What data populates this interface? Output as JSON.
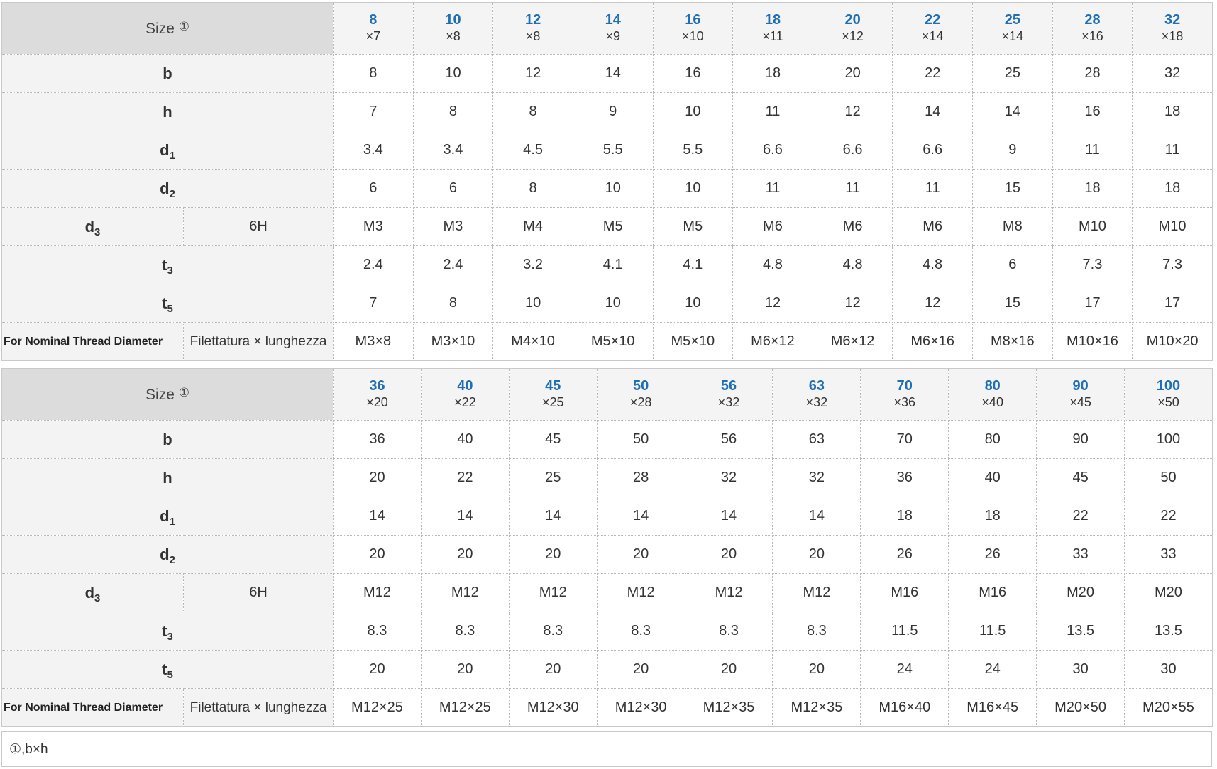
{
  "header_label": "Size",
  "footnote_marker": "①",
  "tables": [
    {
      "sizes": [
        {
          "b": "8",
          "h": "×7"
        },
        {
          "b": "10",
          "h": "×8"
        },
        {
          "b": "12",
          "h": "×8"
        },
        {
          "b": "14",
          "h": "×9"
        },
        {
          "b": "16",
          "h": "×10"
        },
        {
          "b": "18",
          "h": "×11"
        },
        {
          "b": "20",
          "h": "×12"
        },
        {
          "b": "22",
          "h": "×14"
        },
        {
          "b": "25",
          "h": "×14"
        },
        {
          "b": "28",
          "h": "×16"
        },
        {
          "b": "32",
          "h": "×18"
        }
      ],
      "rows": {
        "b": [
          "8",
          "10",
          "12",
          "14",
          "16",
          "18",
          "20",
          "22",
          "25",
          "28",
          "32"
        ],
        "h": [
          "7",
          "8",
          "8",
          "9",
          "10",
          "11",
          "12",
          "14",
          "14",
          "16",
          "18"
        ],
        "d1": [
          "3.4",
          "3.4",
          "4.5",
          "5.5",
          "5.5",
          "6.6",
          "6.6",
          "6.6",
          "9",
          "11",
          "11"
        ],
        "d2": [
          "6",
          "6",
          "8",
          "10",
          "10",
          "11",
          "11",
          "11",
          "15",
          "18",
          "18"
        ],
        "d3": [
          "M3",
          "M3",
          "M4",
          "M5",
          "M5",
          "M6",
          "M6",
          "M6",
          "M8",
          "M10",
          "M10"
        ],
        "t3": [
          "2.4",
          "2.4",
          "3.2",
          "4.1",
          "4.1",
          "4.8",
          "4.8",
          "4.8",
          "6",
          "7.3",
          "7.3"
        ],
        "t5": [
          "7",
          "8",
          "10",
          "10",
          "10",
          "12",
          "12",
          "12",
          "15",
          "17",
          "17"
        ],
        "thread": [
          "M3×8",
          "M3×10",
          "M4×10",
          "M5×10",
          "M5×10",
          "M6×12",
          "M6×12",
          "M6×16",
          "M8×16",
          "M10×16",
          "M10×20"
        ]
      }
    },
    {
      "sizes": [
        {
          "b": "36",
          "h": "×20"
        },
        {
          "b": "40",
          "h": "×22"
        },
        {
          "b": "45",
          "h": "×25"
        },
        {
          "b": "50",
          "h": "×28"
        },
        {
          "b": "56",
          "h": "×32"
        },
        {
          "b": "63",
          "h": "×32"
        },
        {
          "b": "70",
          "h": "×36"
        },
        {
          "b": "80",
          "h": "×40"
        },
        {
          "b": "90",
          "h": "×45"
        },
        {
          "b": "100",
          "h": "×50"
        }
      ],
      "rows": {
        "b": [
          "36",
          "40",
          "45",
          "50",
          "56",
          "63",
          "70",
          "80",
          "90",
          "100"
        ],
        "h": [
          "20",
          "22",
          "25",
          "28",
          "32",
          "32",
          "36",
          "40",
          "45",
          "50"
        ],
        "d1": [
          "14",
          "14",
          "14",
          "14",
          "14",
          "14",
          "18",
          "18",
          "22",
          "22"
        ],
        "d2": [
          "20",
          "20",
          "20",
          "20",
          "20",
          "20",
          "26",
          "26",
          "33",
          "33"
        ],
        "d3": [
          "M12",
          "M12",
          "M12",
          "M12",
          "M12",
          "M12",
          "M16",
          "M16",
          "M20",
          "M20"
        ],
        "t3": [
          "8.3",
          "8.3",
          "8.3",
          "8.3",
          "8.3",
          "8.3",
          "11.5",
          "11.5",
          "13.5",
          "13.5"
        ],
        "t5": [
          "20",
          "20",
          "20",
          "20",
          "20",
          "20",
          "24",
          "24",
          "30",
          "30"
        ],
        "thread": [
          "M12×25",
          "M12×25",
          "M12×30",
          "M12×30",
          "M12×35",
          "M12×35",
          "M16×40",
          "M16×45",
          "M20×50",
          "M20×55"
        ]
      }
    }
  ],
  "labels": {
    "b": "b",
    "h": "h",
    "d1_main": "d",
    "d1_sub": "1",
    "d2_main": "d",
    "d2_sub": "2",
    "d3_main": "d",
    "d3_sub": "3",
    "d3_tol": "6H",
    "t3_main": "t",
    "t3_sub": "3",
    "t5_main": "t",
    "t5_sub": "5",
    "thread_en": "For Nominal Thread Diameter",
    "thread_it": "Filettatura × lunghezza"
  },
  "footnote": "①,b×h"
}
